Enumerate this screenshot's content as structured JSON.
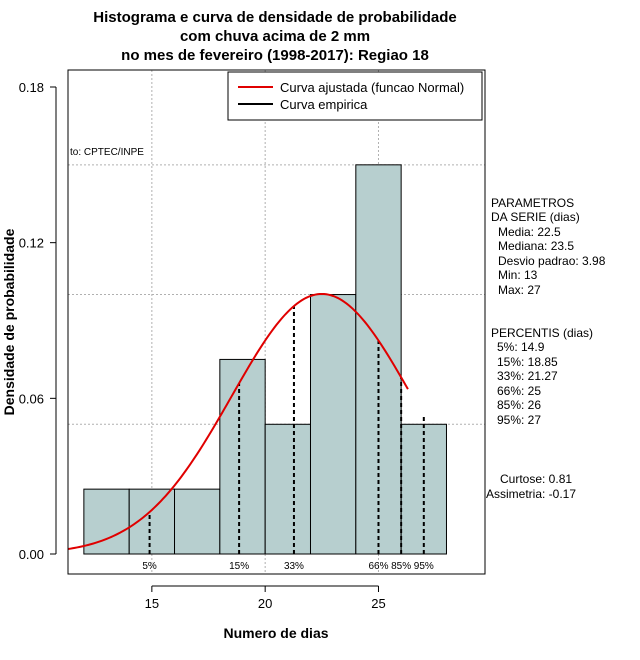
{
  "chart_data": {
    "type": "bar",
    "title_lines": [
      "Histograma e curva de densidade de probabilidade",
      "com chuva acima de 2 mm",
      "no mes de fevereiro (1998-2017): Regiao 18"
    ],
    "xlabel": "Numero de dias",
    "ylabel": "Densidade de probabilidade",
    "xlim": [
      11.3,
      29.7
    ],
    "ylim": [
      0,
      0.18
    ],
    "xticks": [
      15,
      20,
      25
    ],
    "yticks": [
      0.0,
      0.06,
      0.12,
      0.18
    ],
    "ytick_labels": [
      "0.00",
      "0.06",
      "0.12",
      "0.18"
    ],
    "grid_y": [
      0.05,
      0.1,
      0.15
    ],
    "bins": [
      {
        "start": 12,
        "end": 14,
        "density": 0.025
      },
      {
        "start": 14,
        "end": 16,
        "density": 0.025
      },
      {
        "start": 16,
        "end": 18,
        "density": 0.025
      },
      {
        "start": 18,
        "end": 20,
        "density": 0.075
      },
      {
        "start": 20,
        "end": 22,
        "density": 0.05
      },
      {
        "start": 22,
        "end": 24,
        "density": 0.1
      },
      {
        "start": 24,
        "end": 26,
        "density": 0.15
      },
      {
        "start": 26,
        "end": 28,
        "density": 0.05
      }
    ],
    "bar_color": "#b7cfcf",
    "curve": {
      "mean": 22.5,
      "sd": 3.98,
      "x_from": 11.3,
      "x_to": 26.3,
      "color": "#e00000"
    },
    "percentile_lines": [
      {
        "label": "5%",
        "x": 14.9
      },
      {
        "label": "15%",
        "x": 18.85
      },
      {
        "label": "33%",
        "x": 21.27
      },
      {
        "label": "66%",
        "x": 25
      },
      {
        "label": "85%",
        "x": 26
      },
      {
        "label": "95%",
        "x": 27
      }
    ],
    "legend": {
      "entries": [
        {
          "label": "Curva ajustada (funcao Normal)",
          "color": "#e00000"
        },
        {
          "label": "Curva empirica",
          "color": "#000000"
        }
      ],
      "position": "top-right"
    },
    "source_note": "to: CPTEC/INPE",
    "parametros": {
      "header": [
        "PARAMETROS",
        "DA SERIE (dias)"
      ],
      "lines": [
        "Media: 22.5",
        "Mediana: 23.5",
        "Desvio padrao: 3.98",
        "Min: 13",
        "Max: 27"
      ]
    },
    "percentis": {
      "header": "PERCENTIS (dias)",
      "lines": [
        "5%: 14.9",
        "15%: 18.85",
        "33%: 21.27",
        "66%: 25",
        "85%: 26",
        "95%: 27"
      ]
    },
    "shape": {
      "lines": [
        "Curtose: 0.81",
        "Assimetria: -0.17"
      ]
    }
  }
}
